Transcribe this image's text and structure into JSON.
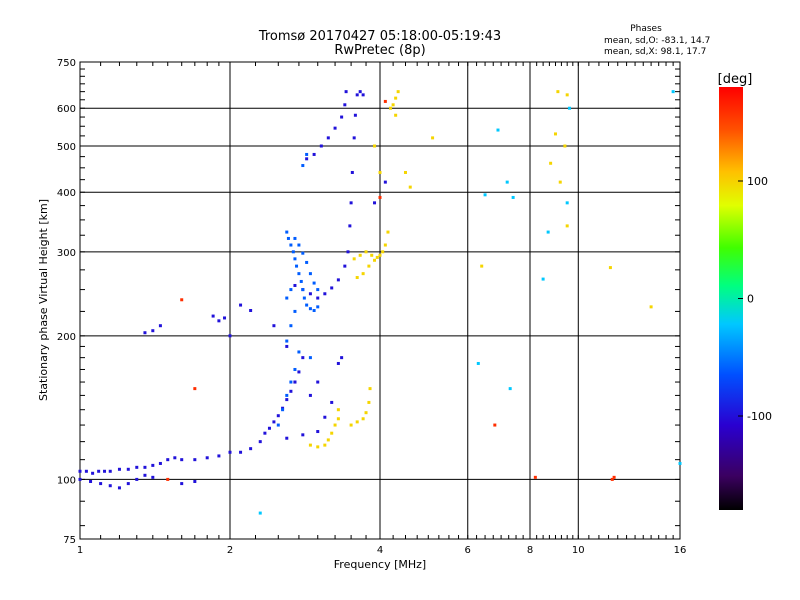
{
  "header": {
    "title_line1": "Tromsø 20170427 05:18:00-05:19:43",
    "title_line2": "RwPretec (8p)"
  },
  "phases": {
    "heading": "Phases",
    "line_o": "mean, sd,O: -83.1, 14.7",
    "line_x": "mean, sd,X:  98.1, 17.7"
  },
  "colorbar": {
    "unit": "[deg]",
    "ticks": [
      {
        "label": "100",
        "value": 100
      },
      {
        "label": "0",
        "value": 0
      },
      {
        "label": "-100",
        "value": -100
      }
    ],
    "range": [
      -180,
      180
    ]
  },
  "chart_data": {
    "type": "scatter",
    "title": "Tromsø 20170427 05:18:00-05:19:43",
    "subtitle": "RwPretec (8p)",
    "xlabel": "Frequency [MHz]",
    "ylabel": "Stationary phase Virtual Height [km]",
    "x_scale": "log",
    "y_scale": "log",
    "xlim": [
      1,
      16
    ],
    "ylim": [
      75,
      750
    ],
    "x_ticks": [
      {
        "label": "1",
        "value": 1
      },
      {
        "label": "2",
        "value": 2
      },
      {
        "label": "4",
        "value": 4
      },
      {
        "label": "6",
        "value": 6
      },
      {
        "label": "8",
        "value": 8
      },
      {
        "label": "10",
        "value": 10
      },
      {
        "label": "16",
        "value": 16
      }
    ],
    "y_ticks": [
      {
        "label": "75",
        "value": 75
      },
      {
        "label": "100",
        "value": 100
      },
      {
        "label": "200",
        "value": 200
      },
      {
        "label": "300",
        "value": 300
      },
      {
        "label": "400",
        "value": 400
      },
      {
        "label": "500",
        "value": 500
      },
      {
        "label": "600",
        "value": 600
      },
      {
        "label": "750",
        "value": 750
      }
    ],
    "grid_x": [
      2,
      4,
      6,
      8,
      10
    ],
    "grid_y": [
      100,
      200,
      300,
      400,
      500,
      600
    ],
    "color_variable": "phase [deg]",
    "series": [
      {
        "kind": "O",
        "phase": -100,
        "points": [
          [
            1.0,
            104
          ],
          [
            1.03,
            104
          ],
          [
            1.06,
            103
          ],
          [
            1.09,
            104
          ],
          [
            1.12,
            104
          ],
          [
            1.15,
            104
          ],
          [
            1.2,
            105
          ],
          [
            1.25,
            105
          ],
          [
            1.3,
            106
          ],
          [
            1.35,
            106
          ],
          [
            1.4,
            107
          ],
          [
            1.45,
            108
          ],
          [
            1.5,
            110
          ],
          [
            1.55,
            111
          ],
          [
            1.6,
            110
          ],
          [
            1.7,
            110
          ],
          [
            1.8,
            111
          ],
          [
            1.9,
            112
          ],
          [
            2.0,
            114
          ],
          [
            2.1,
            114
          ],
          [
            2.2,
            116
          ],
          [
            2.3,
            120
          ],
          [
            2.35,
            125
          ],
          [
            2.4,
            128
          ],
          [
            2.45,
            132
          ],
          [
            2.5,
            136
          ],
          [
            2.55,
            141
          ],
          [
            2.6,
            147
          ],
          [
            2.65,
            153
          ],
          [
            2.7,
            160
          ],
          [
            2.75,
            168
          ],
          [
            2.8,
            180
          ],
          [
            1.0,
            100
          ],
          [
            1.05,
            99
          ],
          [
            1.1,
            98
          ],
          [
            1.15,
            97
          ],
          [
            1.2,
            96
          ],
          [
            1.25,
            98
          ],
          [
            1.3,
            100
          ],
          [
            1.35,
            102
          ],
          [
            1.4,
            101
          ],
          [
            2.6,
            122
          ],
          [
            2.8,
            124
          ],
          [
            3.0,
            126
          ],
          [
            3.1,
            135
          ],
          [
            3.2,
            145
          ],
          [
            2.7,
            255
          ],
          [
            2.8,
            250
          ],
          [
            2.9,
            245
          ],
          [
            3.0,
            240
          ],
          [
            3.1,
            245
          ],
          [
            3.2,
            252
          ],
          [
            3.3,
            262
          ],
          [
            3.4,
            280
          ],
          [
            3.45,
            300
          ],
          [
            3.48,
            340
          ],
          [
            3.5,
            380
          ],
          [
            3.52,
            440
          ],
          [
            3.55,
            520
          ],
          [
            3.57,
            580
          ],
          [
            3.6,
            640
          ],
          [
            2.85,
            470
          ],
          [
            2.95,
            480
          ],
          [
            3.05,
            500
          ],
          [
            3.15,
            520
          ],
          [
            3.25,
            545
          ],
          [
            3.35,
            575
          ],
          [
            3.4,
            610
          ],
          [
            3.42,
            650
          ],
          [
            3.65,
            650
          ],
          [
            3.7,
            640
          ],
          [
            1.35,
            203
          ],
          [
            1.4,
            205
          ],
          [
            1.45,
            210
          ],
          [
            1.85,
            220
          ],
          [
            1.9,
            215
          ],
          [
            1.95,
            218
          ],
          [
            2.0,
            200
          ],
          [
            2.1,
            232
          ],
          [
            2.2,
            226
          ],
          [
            2.45,
            210
          ],
          [
            2.6,
            190
          ],
          [
            2.7,
            160
          ],
          [
            2.9,
            150
          ],
          [
            3.0,
            160
          ],
          [
            3.3,
            175
          ],
          [
            3.35,
            180
          ],
          [
            1.6,
            98
          ],
          [
            1.7,
            99
          ],
          [
            4.1,
            420
          ],
          [
            3.9,
            380
          ]
        ]
      },
      {
        "kind": "O-diffuse",
        "phase": -60,
        "points": [
          [
            2.6,
            330
          ],
          [
            2.62,
            320
          ],
          [
            2.65,
            310
          ],
          [
            2.68,
            300
          ],
          [
            2.7,
            290
          ],
          [
            2.72,
            280
          ],
          [
            2.75,
            270
          ],
          [
            2.78,
            260
          ],
          [
            2.8,
            250
          ],
          [
            2.82,
            240
          ],
          [
            2.85,
            232
          ],
          [
            2.9,
            228
          ],
          [
            2.95,
            226
          ],
          [
            3.0,
            230
          ],
          [
            2.7,
            320
          ],
          [
            2.75,
            310
          ],
          [
            2.8,
            298
          ],
          [
            2.85,
            285
          ],
          [
            2.9,
            270
          ],
          [
            2.95,
            258
          ],
          [
            3.0,
            250
          ],
          [
            2.65,
            250
          ],
          [
            2.6,
            240
          ],
          [
            2.85,
            480
          ],
          [
            2.8,
            455
          ],
          [
            2.5,
            130
          ],
          [
            2.55,
            140
          ],
          [
            2.6,
            150
          ],
          [
            2.65,
            160
          ],
          [
            2.7,
            170
          ],
          [
            2.75,
            185
          ],
          [
            2.6,
            195
          ],
          [
            2.65,
            210
          ],
          [
            2.7,
            225
          ],
          [
            2.9,
            180
          ]
        ]
      },
      {
        "kind": "X",
        "phase": 100,
        "points": [
          [
            2.9,
            118
          ],
          [
            3.0,
            117
          ],
          [
            3.1,
            118
          ],
          [
            3.15,
            121
          ],
          [
            3.2,
            125
          ],
          [
            3.25,
            130
          ],
          [
            3.3,
            134
          ],
          [
            3.3,
            140
          ],
          [
            3.5,
            130
          ],
          [
            3.6,
            132
          ],
          [
            3.7,
            134
          ],
          [
            3.75,
            138
          ],
          [
            3.8,
            145
          ],
          [
            3.82,
            155
          ],
          [
            3.6,
            265
          ],
          [
            3.7,
            270
          ],
          [
            3.8,
            280
          ],
          [
            3.9,
            288
          ],
          [
            4.0,
            295
          ],
          [
            4.05,
            300
          ],
          [
            4.1,
            310
          ],
          [
            4.15,
            330
          ],
          [
            3.55,
            290
          ],
          [
            3.65,
            295
          ],
          [
            3.75,
            300
          ],
          [
            3.85,
            295
          ],
          [
            3.95,
            292
          ],
          [
            4.2,
            600
          ],
          [
            4.25,
            610
          ],
          [
            4.3,
            630
          ],
          [
            4.35,
            650
          ],
          [
            4.3,
            580
          ],
          [
            5.1,
            520
          ],
          [
            4.6,
            410
          ],
          [
            4.5,
            440
          ],
          [
            9.1,
            650
          ],
          [
            9.5,
            640
          ],
          [
            9.0,
            530
          ],
          [
            9.4,
            500
          ],
          [
            8.8,
            460
          ],
          [
            9.2,
            420
          ],
          [
            9.5,
            340
          ],
          [
            6.4,
            280
          ],
          [
            11.6,
            278
          ],
          [
            14.0,
            230
          ],
          [
            4.0,
            440
          ],
          [
            3.9,
            500
          ]
        ]
      },
      {
        "kind": "X-red",
        "phase": 160,
        "points": [
          [
            1.6,
            238
          ],
          [
            1.7,
            155
          ],
          [
            4.1,
            620
          ],
          [
            4.0,
            390
          ],
          [
            6.8,
            130
          ],
          [
            8.2,
            101
          ],
          [
            11.7,
            100
          ],
          [
            11.8,
            101
          ],
          [
            1.5,
            100
          ]
        ]
      },
      {
        "kind": "sparse",
        "phase": -20,
        "points": [
          [
            6.9,
            540
          ],
          [
            7.2,
            420
          ],
          [
            7.3,
            155
          ],
          [
            6.3,
            175
          ],
          [
            6.5,
            395
          ],
          [
            8.5,
            263
          ],
          [
            8.7,
            330
          ],
          [
            9.5,
            380
          ],
          [
            9.6,
            600
          ],
          [
            15.5,
            650
          ],
          [
            16.0,
            108
          ],
          [
            2.3,
            85
          ],
          [
            7.4,
            390
          ]
        ]
      }
    ]
  }
}
